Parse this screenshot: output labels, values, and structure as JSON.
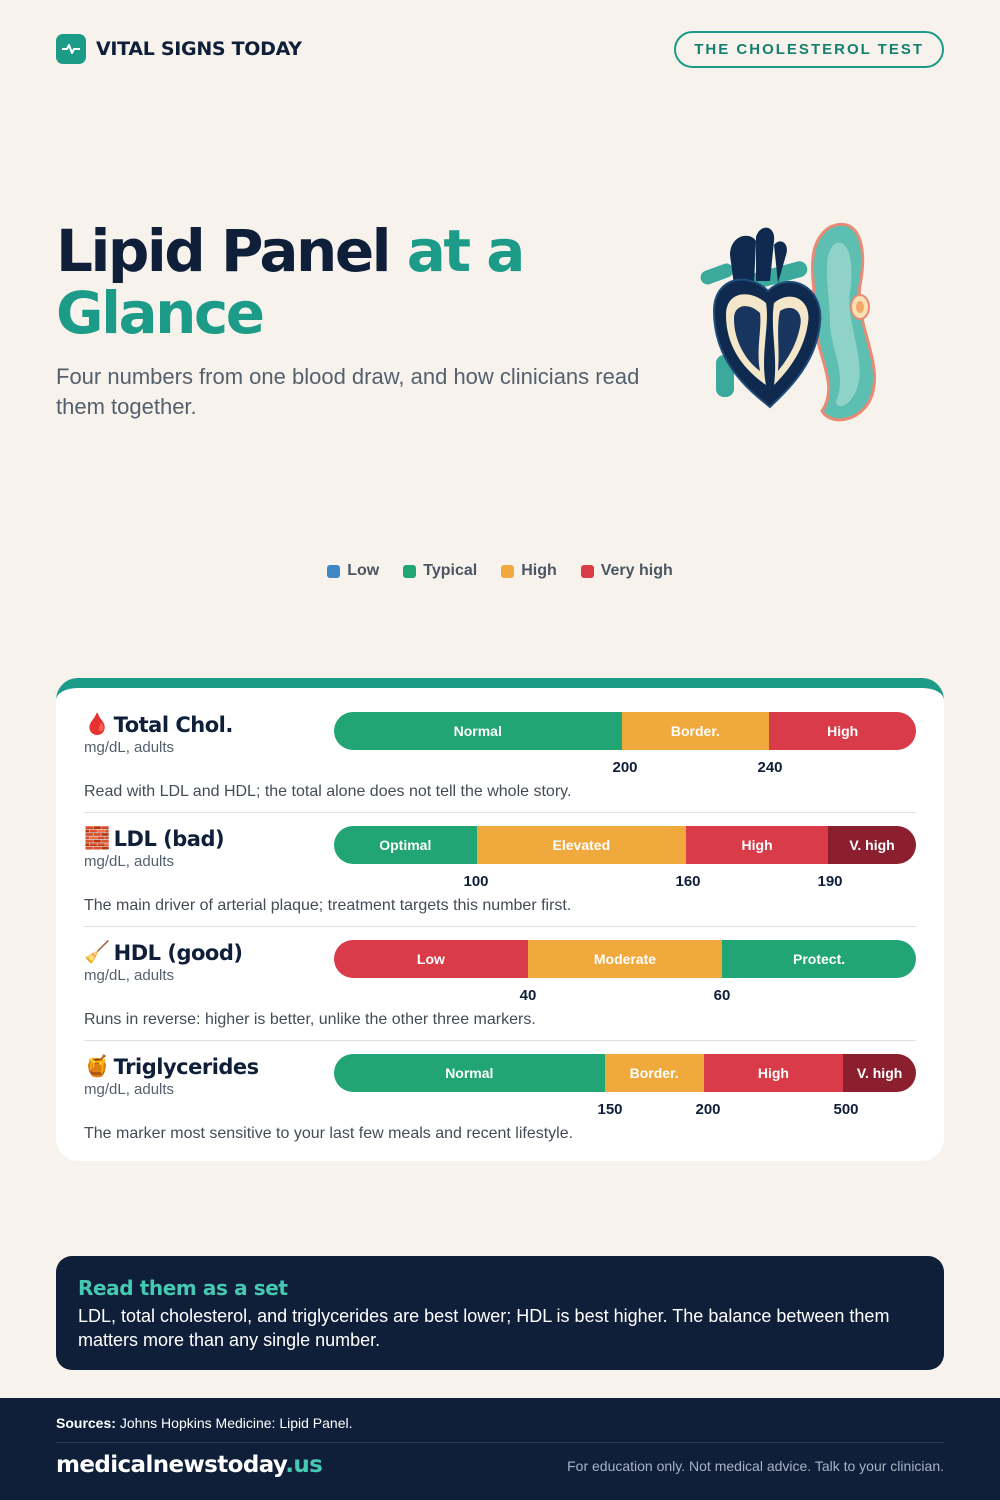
{
  "header": {
    "brand_name": "VITAL SIGNS TODAY",
    "tag_label": "THE CHOLESTEROL TEST"
  },
  "hero": {
    "title_part1": "Lipid Panel",
    "title_part2": "at a Glance",
    "subtitle": "Four numbers from one blood draw, and how clinicians read them together."
  },
  "legend": [
    {
      "label": "Low",
      "color": "#3f86c7"
    },
    {
      "label": "Typical",
      "color": "#21a574"
    },
    {
      "label": "High",
      "color": "#f0a93c"
    },
    {
      "label": "Very high",
      "color": "#d93b48"
    }
  ],
  "markers": [
    {
      "icon": "🩸",
      "title": "Total Chol.",
      "unit": "mg/dL, adults",
      "segments": [
        {
          "label": "Normal",
          "color": "#21a574",
          "share": 0.494
        },
        {
          "label": "Border.",
          "color": "#f0a93c",
          "share": 0.254
        },
        {
          "label": "High",
          "color": "#d93b48",
          "share": 0.252
        }
      ],
      "ticks": [
        "200",
        "240"
      ],
      "note": "Read with LDL and HDL; the total alone does not tell the whole story."
    },
    {
      "icon": "🧱",
      "title": "LDL (bad)",
      "unit": "mg/dL, adults",
      "segments": [
        {
          "label": "Optimal",
          "color": "#21a574",
          "share": 0.245
        },
        {
          "label": "Elevated",
          "color": "#f0a93c",
          "share": 0.36
        },
        {
          "label": "High",
          "color": "#d93b48",
          "share": 0.244
        },
        {
          "label": "V. high",
          "color": "#8c1f2e",
          "share": 0.151
        }
      ],
      "ticks": [
        "100",
        "160",
        "190"
      ],
      "note": "The main driver of arterial plaque; treatment targets this number first."
    },
    {
      "icon": "🧹",
      "title": "HDL (good)",
      "unit": "mg/dL, adults",
      "segments": [
        {
          "label": "Low",
          "color": "#d93b48",
          "share": 0.333
        },
        {
          "label": "Moderate",
          "color": "#f0a93c",
          "share": 0.334
        },
        {
          "label": "Protect.",
          "color": "#21a574",
          "share": 0.333
        }
      ],
      "ticks": [
        "40",
        "60"
      ],
      "note": "Runs in reverse: higher is better, unlike the other three markers."
    },
    {
      "icon": "🍯",
      "title": "Triglycerides",
      "unit": "mg/dL, adults",
      "segments": [
        {
          "label": "Normal",
          "color": "#21a574",
          "share": 0.465
        },
        {
          "label": "Border.",
          "color": "#f0a93c",
          "share": 0.17
        },
        {
          "label": "High",
          "color": "#d93b48",
          "share": 0.24
        },
        {
          "label": "V. high",
          "color": "#8c1f2e",
          "share": 0.125
        }
      ],
      "ticks": [
        "150",
        "200",
        "500"
      ],
      "note": "The marker most sensitive to your last few meals and recent lifestyle."
    }
  ],
  "callout": {
    "title": "Read them as a set",
    "body": "LDL, total cholesterol, and triglycerides are best lower; HDL is best higher. The balance between them matters more than any single number."
  },
  "footer": {
    "sources_label": "Sources:",
    "sources_text": "Johns Hopkins Medicine: Lipid Panel.",
    "site_name": "medicalnewstoday",
    "site_tld": ".us",
    "disclaimer": "For education only. Not medical advice. Talk to your clinician."
  }
}
